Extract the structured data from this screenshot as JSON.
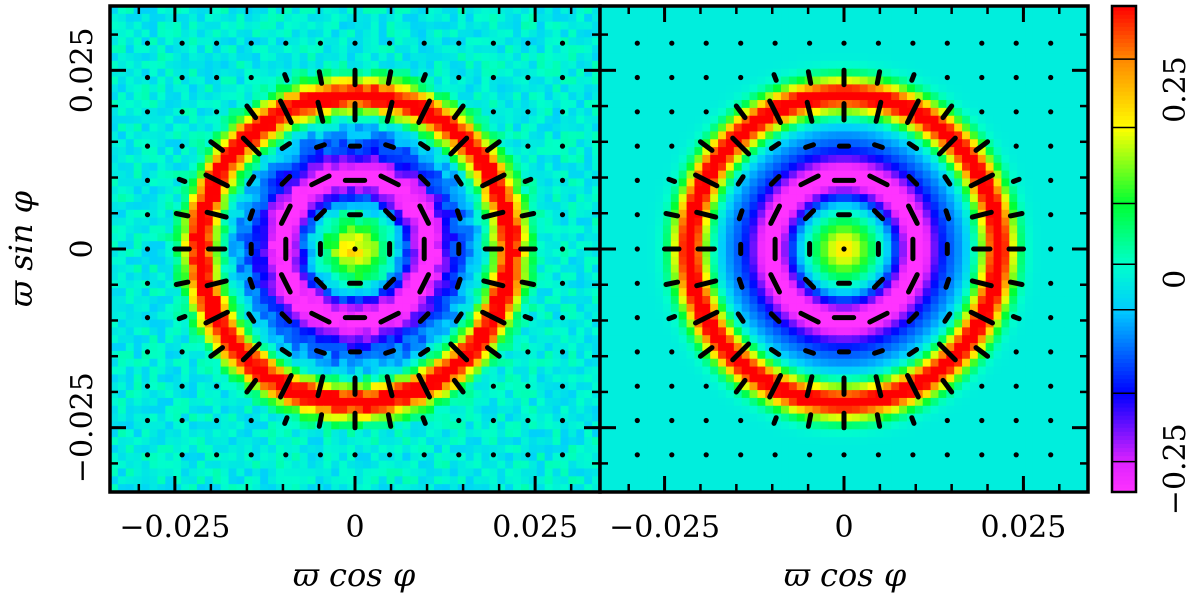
{
  "chart_data": [
    {
      "type": "heatmap",
      "xlabel": "ϖ cos φ",
      "ylabel": "ϖ sin φ",
      "xlim": [
        -0.034,
        0.034
      ],
      "ylim": [
        -0.034,
        0.034
      ],
      "x_tick_values": [
        -0.025,
        0,
        0.025
      ],
      "y_tick_values": [
        -0.025,
        0,
        0.025
      ],
      "x_tick_labels": [
        "−0.025",
        "0",
        "0.025"
      ],
      "y_tick_labels": [
        "−0.025",
        "0",
        "0.025"
      ],
      "field": "noisy",
      "rings": [
        {
          "radius": 0.0101,
          "amplitude": -0.3,
          "width": 0.0022
        },
        {
          "radius": 0.015,
          "amplitude": -0.07,
          "width": 0.0022
        },
        {
          "radius": 0.0215,
          "amplitude": 0.4,
          "width": 0.0017
        }
      ],
      "center_amplitude": 0.22
    },
    {
      "type": "heatmap",
      "xlabel": "ϖ cos φ",
      "ylabel": "",
      "xlim": [
        -0.034,
        0.034
      ],
      "ylim": [
        -0.034,
        0.034
      ],
      "x_tick_values": [
        -0.025,
        0,
        0.025
      ],
      "y_tick_values": [
        -0.025,
        0,
        0.025
      ],
      "x_tick_labels": [
        "−0.025",
        "0",
        "0.025"
      ],
      "y_tick_labels": [],
      "field": "smooth",
      "rings": [
        {
          "radius": 0.0101,
          "amplitude": -0.3,
          "width": 0.0022
        },
        {
          "radius": 0.015,
          "amplitude": -0.07,
          "width": 0.0022
        },
        {
          "radius": 0.0215,
          "amplitude": 0.4,
          "width": 0.0017
        }
      ],
      "center_amplitude": 0.22
    }
  ],
  "colorbar": {
    "range": [
      -0.28,
      0.36
    ],
    "tick_values": [
      -0.25,
      0,
      0.25
    ],
    "tick_labels": [
      "−0.25",
      "0",
      "0.25"
    ],
    "stops": [
      {
        "v": -0.28,
        "color": "#ff33ff"
      },
      {
        "v": -0.24,
        "color": "#dd22ff"
      },
      {
        "v": -0.15,
        "color": "#0000ff"
      },
      {
        "v": -0.04,
        "color": "#00ccff"
      },
      {
        "v": 0.02,
        "color": "#00ffcc"
      },
      {
        "v": 0.1,
        "color": "#00ff33"
      },
      {
        "v": 0.2,
        "color": "#ffff00"
      },
      {
        "v": 0.29,
        "color": "#ff8800"
      },
      {
        "v": 0.36,
        "color": "#ff0000"
      }
    ],
    "band_boundaries": [
      -0.24,
      -0.15,
      -0.04,
      0.02,
      0.1,
      0.2,
      0.29
    ]
  },
  "polarization_vectors": {
    "grid_spacing": 0.0048,
    "color": "#000000"
  }
}
